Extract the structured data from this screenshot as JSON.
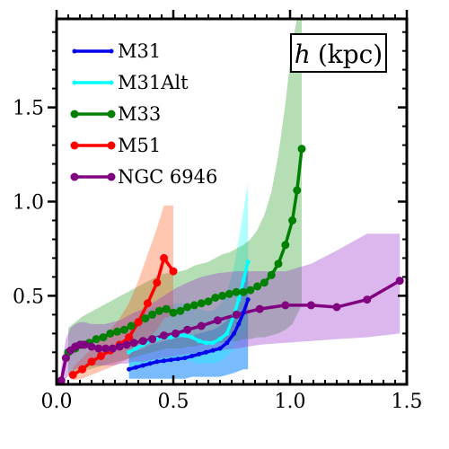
{
  "chart_data": {
    "type": "line",
    "title": "",
    "xlabel": "",
    "ylabel": "",
    "xlim": [
      0.0,
      1.5
    ],
    "ylim": [
      0.03,
      1.97
    ],
    "x_ticks": [
      0.0,
      0.5,
      1.0,
      1.5
    ],
    "x_tick_labels": [
      "0.0",
      "0.5",
      "1.0",
      "1.5"
    ],
    "y_ticks": [
      0.5,
      1.0,
      1.5
    ],
    "y_tick_labels": [
      "0.5",
      "1.0",
      "1.5"
    ],
    "grid": false,
    "legend_position": "top-left",
    "annotation": {
      "symbol": "h",
      "unit": "(kpc)",
      "position": "top-right",
      "boxed": true
    },
    "series": [
      {
        "name": "M31",
        "color": "#0000ee",
        "band_color": "#1e90ff",
        "band_opacity": 0.6,
        "marker_size": 2.5,
        "x": [
          0.31,
          0.34,
          0.37,
          0.4,
          0.43,
          0.46,
          0.49,
          0.52,
          0.55,
          0.58,
          0.61,
          0.64,
          0.67,
          0.7,
          0.73,
          0.76,
          0.78,
          0.8,
          0.82
        ],
        "y": [
          0.11,
          0.12,
          0.13,
          0.14,
          0.15,
          0.155,
          0.16,
          0.165,
          0.17,
          0.18,
          0.19,
          0.2,
          0.21,
          0.22,
          0.25,
          0.3,
          0.35,
          0.41,
          0.48
        ],
        "band_low": [
          0.06,
          0.06,
          0.06,
          0.06,
          0.06,
          0.06,
          0.06,
          0.06,
          0.06,
          0.07,
          0.07,
          0.07,
          0.07,
          0.07,
          0.08,
          0.09,
          0.1,
          0.11,
          0.11
        ],
        "band_high": [
          0.2,
          0.21,
          0.22,
          0.24,
          0.25,
          0.26,
          0.27,
          0.28,
          0.28,
          0.29,
          0.3,
          0.31,
          0.32,
          0.34,
          0.37,
          0.42,
          0.5,
          0.6,
          0.7
        ]
      },
      {
        "name": "M31Alt",
        "color": "#00ffff",
        "band_color": "#00ffff",
        "band_opacity": 0.3,
        "marker_size": 2.5,
        "x": [
          0.31,
          0.34,
          0.37,
          0.4,
          0.43,
          0.46,
          0.49,
          0.52,
          0.55,
          0.58,
          0.61,
          0.64,
          0.67,
          0.7,
          0.73,
          0.76,
          0.78,
          0.8,
          0.82
        ],
        "y": [
          0.2,
          0.22,
          0.24,
          0.26,
          0.27,
          0.28,
          0.28,
          0.29,
          0.29,
          0.28,
          0.26,
          0.25,
          0.25,
          0.27,
          0.3,
          0.4,
          0.48,
          0.58,
          0.68
        ],
        "band_low": [
          0.1,
          0.12,
          0.13,
          0.14,
          0.15,
          0.16,
          0.16,
          0.16,
          0.16,
          0.15,
          0.14,
          0.14,
          0.14,
          0.15,
          0.18,
          0.22,
          0.26,
          0.3,
          0.34
        ],
        "band_high": [
          0.35,
          0.37,
          0.4,
          0.43,
          0.44,
          0.45,
          0.45,
          0.46,
          0.46,
          0.45,
          0.43,
          0.42,
          0.42,
          0.45,
          0.52,
          0.65,
          0.8,
          0.95,
          1.1
        ]
      },
      {
        "name": "M33",
        "color": "#008000",
        "band_color": "#2ca02c",
        "band_opacity": 0.35,
        "marker_size": 4.5,
        "x": [
          0.05,
          0.08,
          0.11,
          0.14,
          0.17,
          0.2,
          0.23,
          0.26,
          0.29,
          0.32,
          0.35,
          0.38,
          0.41,
          0.44,
          0.47,
          0.5,
          0.53,
          0.56,
          0.59,
          0.62,
          0.65,
          0.68,
          0.71,
          0.74,
          0.77,
          0.8,
          0.83,
          0.86,
          0.89,
          0.92,
          0.95,
          0.98,
          1.01,
          1.03,
          1.05
        ],
        "y": [
          0.2,
          0.22,
          0.24,
          0.25,
          0.27,
          0.28,
          0.3,
          0.31,
          0.32,
          0.34,
          0.36,
          0.38,
          0.4,
          0.42,
          0.43,
          0.41,
          0.42,
          0.44,
          0.45,
          0.46,
          0.47,
          0.49,
          0.5,
          0.51,
          0.52,
          0.52,
          0.53,
          0.55,
          0.57,
          0.61,
          0.67,
          0.77,
          0.9,
          1.06,
          1.28
        ],
        "band_low": [
          0.08,
          0.09,
          0.1,
          0.11,
          0.12,
          0.13,
          0.14,
          0.15,
          0.16,
          0.17,
          0.18,
          0.19,
          0.2,
          0.21,
          0.22,
          0.22,
          0.22,
          0.23,
          0.23,
          0.24,
          0.24,
          0.25,
          0.25,
          0.26,
          0.26,
          0.27,
          0.27,
          0.28,
          0.28,
          0.29,
          0.3,
          0.32,
          0.35,
          0.4,
          0.45
        ],
        "band_high": [
          0.33,
          0.36,
          0.39,
          0.41,
          0.43,
          0.45,
          0.47,
          0.49,
          0.51,
          0.53,
          0.55,
          0.57,
          0.59,
          0.61,
          0.62,
          0.62,
          0.63,
          0.64,
          0.66,
          0.67,
          0.68,
          0.7,
          0.72,
          0.73,
          0.75,
          0.77,
          0.8,
          0.85,
          0.93,
          1.05,
          1.25,
          1.52,
          1.85,
          1.97,
          1.97
        ]
      },
      {
        "name": "M51",
        "color": "#ff0000",
        "band_color": "#ff4500",
        "band_opacity": 0.3,
        "marker_size": 4.5,
        "x": [
          0.07,
          0.11,
          0.15,
          0.19,
          0.23,
          0.27,
          0.31,
          0.35,
          0.39,
          0.43,
          0.46,
          0.5
        ],
        "y": [
          0.08,
          0.11,
          0.15,
          0.18,
          0.21,
          0.24,
          0.28,
          0.36,
          0.46,
          0.57,
          0.7,
          0.63
        ],
        "band_low": [
          0.05,
          0.06,
          0.08,
          0.1,
          0.12,
          0.14,
          0.17,
          0.22,
          0.27,
          0.32,
          0.38,
          0.4
        ],
        "band_high": [
          0.12,
          0.17,
          0.22,
          0.27,
          0.32,
          0.38,
          0.46,
          0.58,
          0.72,
          0.86,
          0.98,
          0.98
        ]
      },
      {
        "name": "NGC 6946",
        "color": "#800080",
        "band_color": "#9932cc",
        "band_opacity": 0.35,
        "marker_size": 4.5,
        "x": [
          0.02,
          0.04,
          0.06,
          0.08,
          0.1,
          0.12,
          0.15,
          0.18,
          0.21,
          0.24,
          0.27,
          0.3,
          0.33,
          0.37,
          0.41,
          0.46,
          0.51,
          0.56,
          0.62,
          0.69,
          0.77,
          0.87,
          0.98,
          1.09,
          1.2,
          1.33,
          1.47
        ],
        "y": [
          0.05,
          0.17,
          0.21,
          0.23,
          0.24,
          0.24,
          0.23,
          0.22,
          0.22,
          0.22,
          0.23,
          0.24,
          0.25,
          0.26,
          0.27,
          0.29,
          0.3,
          0.32,
          0.34,
          0.37,
          0.4,
          0.43,
          0.45,
          0.45,
          0.44,
          0.48,
          0.58
        ],
        "band_low": [
          0.03,
          0.06,
          0.09,
          0.11,
          0.12,
          0.13,
          0.13,
          0.13,
          0.13,
          0.13,
          0.14,
          0.14,
          0.15,
          0.15,
          0.16,
          0.17,
          0.18,
          0.19,
          0.2,
          0.21,
          0.22,
          0.24,
          0.25,
          0.26,
          0.27,
          0.28,
          0.3
        ],
        "band_high": [
          0.12,
          0.27,
          0.33,
          0.35,
          0.36,
          0.36,
          0.35,
          0.35,
          0.35,
          0.36,
          0.37,
          0.39,
          0.41,
          0.43,
          0.46,
          0.5,
          0.54,
          0.57,
          0.6,
          0.62,
          0.63,
          0.63,
          0.63,
          0.67,
          0.74,
          0.83,
          0.83
        ]
      }
    ]
  }
}
